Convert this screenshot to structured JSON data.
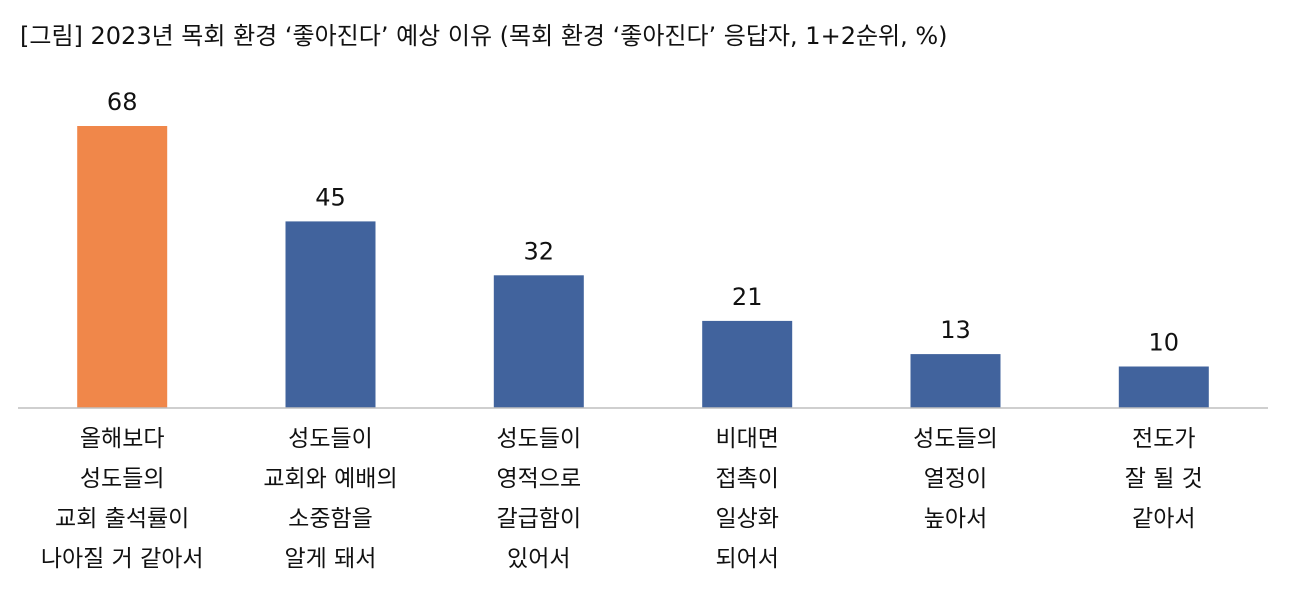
{
  "title": "[그림] 2023년 목회 환경 ‘좋아진다’ 예상 이유 (목회 환경 ‘좋아진다’ 응답자, 1+2순위, %)",
  "chart_data": {
    "type": "bar",
    "categories": [
      [
        "올해보다",
        "성도들의",
        "교회 출석률이",
        "나아질 거 같아서"
      ],
      [
        "성도들이",
        "교회와 예배의",
        "소중함을",
        "알게 돼서"
      ],
      [
        "성도들이",
        "영적으로",
        "갈급함이",
        "있어서"
      ],
      [
        "비대면",
        "접촉이",
        "일상화",
        "되어서"
      ],
      [
        "성도들의",
        "열정이",
        "높아서"
      ],
      [
        "전도가",
        "잘 될 것",
        "같아서"
      ]
    ],
    "values": [
      68,
      45,
      32,
      21,
      13,
      10
    ],
    "colors": [
      "#F0874A",
      "#41639D",
      "#41639D",
      "#41639D",
      "#41639D",
      "#41639D"
    ],
    "ylim": [
      0,
      68
    ],
    "grid": false,
    "legend": false,
    "axis_color": "#BFBFBF"
  }
}
